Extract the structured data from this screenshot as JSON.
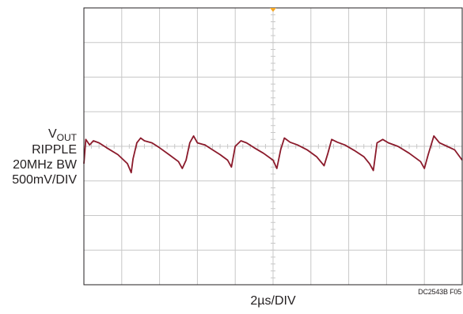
{
  "chart_data": {
    "type": "line",
    "title": "",
    "channel_label": {
      "base": "V",
      "sub": "OUT"
    },
    "ylabel_lines": [
      "RIPPLE",
      "20MHz BW",
      "500mV/DIV"
    ],
    "xlabel": "2µs/DIV",
    "figure_id": "DC2543B F05",
    "x_divisions": 10,
    "y_divisions": 8,
    "xlim": [
      0,
      20
    ],
    "ylim": [
      -2,
      2
    ],
    "x_unit": "µs",
    "y_unit": "V",
    "grid": true,
    "trigger_marker": true,
    "colors": {
      "trace": "#8b1a2b",
      "grid": "#c8c8c8",
      "frame": "#231f20",
      "marker": "#f5a623"
    },
    "series": [
      {
        "values": [
          [
            0.0,
            -0.25
          ],
          [
            0.1,
            0.1
          ],
          [
            0.3,
            0.02
          ],
          [
            0.5,
            0.08
          ],
          [
            0.8,
            0.05
          ],
          [
            1.2,
            -0.02
          ],
          [
            1.8,
            -0.12
          ],
          [
            2.3,
            -0.25
          ],
          [
            2.5,
            -0.38
          ],
          [
            2.6,
            -0.18
          ],
          [
            2.8,
            0.05
          ],
          [
            3.0,
            0.12
          ],
          [
            3.2,
            0.08
          ],
          [
            3.6,
            0.05
          ],
          [
            4.0,
            -0.02
          ],
          [
            4.5,
            -0.12
          ],
          [
            5.0,
            -0.22
          ],
          [
            5.2,
            -0.32
          ],
          [
            5.4,
            -0.2
          ],
          [
            5.6,
            0.05
          ],
          [
            5.8,
            0.15
          ],
          [
            6.0,
            0.05
          ],
          [
            6.4,
            0.02
          ],
          [
            6.8,
            -0.05
          ],
          [
            7.2,
            -0.12
          ],
          [
            7.6,
            -0.2
          ],
          [
            7.8,
            -0.3
          ],
          [
            8.0,
            0.0
          ],
          [
            8.3,
            0.08
          ],
          [
            8.6,
            0.05
          ],
          [
            9.0,
            -0.02
          ],
          [
            9.5,
            -0.1
          ],
          [
            10.0,
            -0.2
          ],
          [
            10.2,
            -0.32
          ],
          [
            10.4,
            -0.05
          ],
          [
            10.6,
            0.12
          ],
          [
            10.9,
            0.06
          ],
          [
            11.3,
            0.02
          ],
          [
            11.8,
            -0.05
          ],
          [
            12.3,
            -0.15
          ],
          [
            12.7,
            -0.28
          ],
          [
            12.9,
            -0.1
          ],
          [
            13.1,
            0.1
          ],
          [
            13.4,
            0.06
          ],
          [
            13.8,
            0.02
          ],
          [
            14.3,
            -0.06
          ],
          [
            14.8,
            -0.15
          ],
          [
            15.1,
            -0.25
          ],
          [
            15.3,
            -0.35
          ],
          [
            15.5,
            0.05
          ],
          [
            15.8,
            0.1
          ],
          [
            16.1,
            0.05
          ],
          [
            16.6,
            0.0
          ],
          [
            17.2,
            -0.1
          ],
          [
            17.8,
            -0.22
          ],
          [
            18.0,
            -0.32
          ],
          [
            18.2,
            -0.12
          ],
          [
            18.5,
            0.15
          ],
          [
            18.8,
            0.05
          ],
          [
            19.2,
            0.0
          ],
          [
            19.6,
            -0.05
          ],
          [
            20.0,
            -0.2
          ]
        ]
      }
    ]
  }
}
